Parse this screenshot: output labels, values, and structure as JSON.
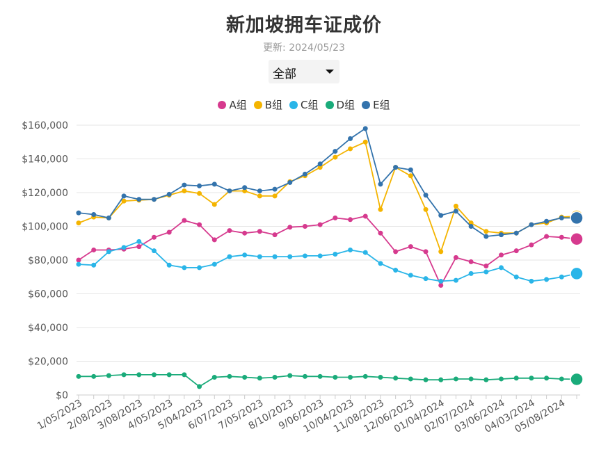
{
  "header": {
    "title": "新加坡拥车证成价",
    "updated": "更新: 2024/05/23",
    "filter_selected": "全部"
  },
  "chart_data": {
    "type": "line",
    "title": "新加坡拥车证成价",
    "subtitle": "更新: 2024/05/23",
    "ylim": [
      0,
      160000
    ],
    "y_ticks": [
      "$0",
      "$20,000",
      "$40,000",
      "$60,000",
      "$80,000",
      "$100,000",
      "$120,000",
      "$140,000",
      "$160,000"
    ],
    "y_tick_values": [
      0,
      20000,
      40000,
      60000,
      80000,
      100000,
      120000,
      140000,
      160000
    ],
    "x_tick_labels": [
      "1/05/2023",
      "2/08/2023",
      "3/08/2023",
      "4/05/2023",
      "5/04/2023",
      "6/07/2023",
      "7/05/2023",
      "8/10/2023",
      "9/06/2023",
      "10/04/2023",
      "11/08/2023",
      "12/06/2023",
      "01/04/2024",
      "02/07/2024",
      "03/06/2024",
      "04/03/2024",
      "05/08/2024"
    ],
    "grid": true,
    "legend_position": "top-center",
    "series": [
      {
        "name": "A组",
        "color": "#d63a8e",
        "values": [
          80000,
          86000,
          86000,
          86500,
          88000,
          93500,
          96500,
          103500,
          101000,
          92000,
          97500,
          96000,
          97000,
          95000,
          99500,
          100000,
          101000,
          105000,
          104000,
          106000,
          96000,
          85000,
          88000,
          85000,
          65000,
          81500,
          79000,
          76500,
          83000,
          85500,
          89000,
          94000,
          93500,
          92500
        ]
      },
      {
        "name": "B组",
        "color": "#f4b400",
        "values": [
          102000,
          105500,
          105000,
          115000,
          115500,
          116000,
          118500,
          121000,
          119500,
          113000,
          121000,
          121000,
          118000,
          118000,
          126500,
          130000,
          135000,
          141000,
          146000,
          150000,
          110000,
          135000,
          130000,
          110000,
          85000,
          112000,
          102000,
          97000,
          96000,
          96000,
          101000,
          102000,
          105500,
          106000
        ]
      },
      {
        "name": "C组",
        "color": "#2ab5e8",
        "values": [
          77500,
          77000,
          85000,
          87500,
          91000,
          85500,
          77000,
          75500,
          75500,
          77500,
          82000,
          83000,
          82000,
          82000,
          82000,
          82500,
          82500,
          83500,
          86000,
          84500,
          78000,
          74000,
          71000,
          69000,
          67500,
          68000,
          72000,
          73000,
          75500,
          70000,
          67500,
          68500,
          70000,
          72000
        ]
      },
      {
        "name": "D组",
        "color": "#1aab7a",
        "values": [
          11000,
          11000,
          11500,
          12000,
          12000,
          12000,
          12000,
          12000,
          5000,
          10500,
          11000,
          10500,
          10000,
          10500,
          11500,
          11000,
          11000,
          10500,
          10500,
          11000,
          10500,
          10000,
          9500,
          9000,
          9000,
          9500,
          9500,
          9000,
          9500,
          10000,
          10000,
          10000,
          9500,
          9300
        ]
      },
      {
        "name": "E组",
        "color": "#3373ac",
        "values": [
          108000,
          107000,
          105000,
          118000,
          116000,
          116000,
          119000,
          124500,
          124000,
          125000,
          121000,
          123000,
          121000,
          122000,
          126000,
          131000,
          137000,
          144500,
          152000,
          158000,
          125000,
          135000,
          133500,
          118500,
          106500,
          109000,
          100000,
          94000,
          95000,
          96000,
          101000,
          103000,
          105000,
          105000
        ]
      }
    ]
  }
}
